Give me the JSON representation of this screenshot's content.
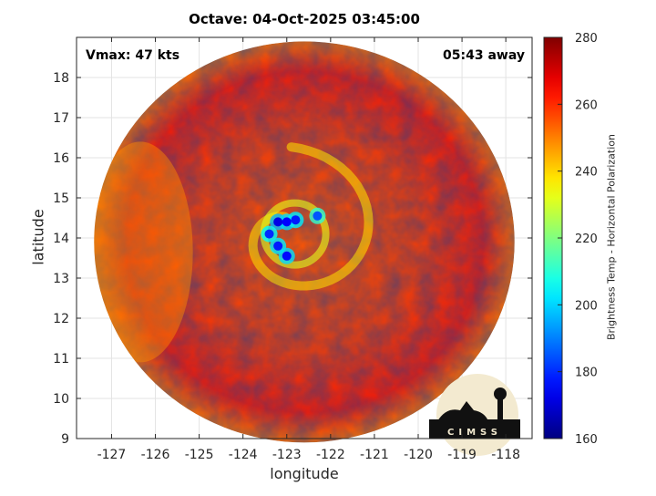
{
  "chart_data": {
    "type": "heatmap",
    "title": "Octave: 04-Oct-2025 03:45:00",
    "xlabel": "longitude",
    "ylabel": "latitude",
    "xlim": [
      -127.8,
      -117.4
    ],
    "ylim": [
      9,
      19
    ],
    "xticks": [
      -127,
      -126,
      -125,
      -124,
      -123,
      -122,
      -121,
      -120,
      -119,
      -118
    ],
    "yticks": [
      9,
      10,
      11,
      12,
      13,
      14,
      15,
      16,
      17,
      18
    ],
    "grid": true,
    "annotations": {
      "vmax": "Vmax: 47 kts",
      "time_offset": "05:43 away"
    },
    "colorbar": {
      "label": "Brightness Temp - Horizontal Polarization",
      "min": 160,
      "max": 280,
      "ticks": [
        160,
        180,
        200,
        220,
        240,
        260,
        280
      ],
      "colormap": "jet"
    },
    "swath": {
      "center_lon": -122.6,
      "center_lat": 13.9,
      "radius_lon": 4.8,
      "radius_lat": 5.0
    },
    "storm_center": {
      "lon": -122.9,
      "lat": 14.1
    },
    "cold_core": [
      {
        "lon": -123.2,
        "lat": 14.4,
        "tb": 172
      },
      {
        "lon": -123.0,
        "lat": 14.4,
        "tb": 175
      },
      {
        "lon": -122.8,
        "lat": 14.45,
        "tb": 178
      },
      {
        "lon": -123.4,
        "lat": 14.1,
        "tb": 180
      },
      {
        "lon": -123.2,
        "lat": 13.8,
        "tb": 178
      },
      {
        "lon": -123.0,
        "lat": 13.55,
        "tb": 176
      },
      {
        "lon": -122.3,
        "lat": 14.55,
        "tb": 185
      }
    ],
    "background_tb": 262,
    "logo_text": "CIMSS"
  }
}
